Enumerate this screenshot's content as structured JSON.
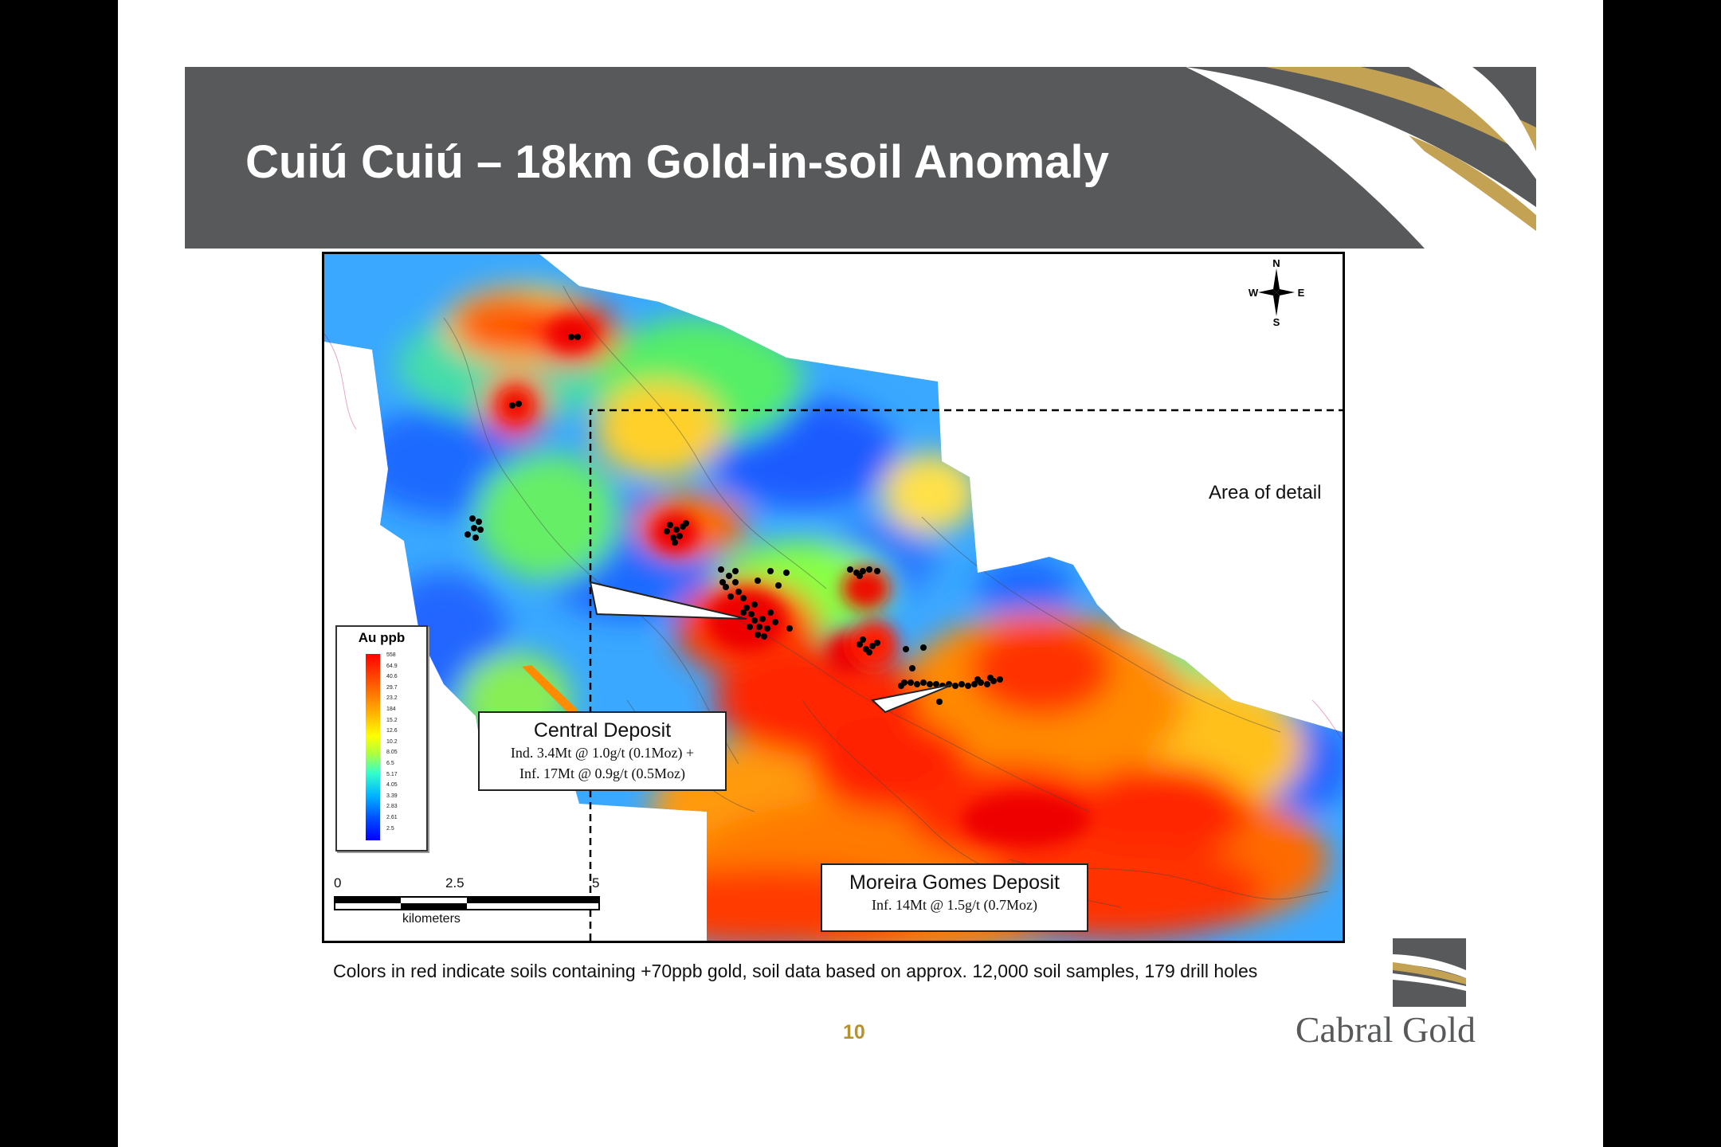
{
  "slide": {
    "title": "Cuiú Cuiú – 18km Gold-in-soil Anomaly",
    "page_number": "10",
    "footnote": "Colors in red indicate soils containing +70ppb gold, soil data based on approx. 12,000 soil samples, 179 drill holes",
    "brand_name": "Cabral Gold",
    "colors": {
      "header": "#58595b",
      "gold_accent": "#b8912f",
      "background": "#ffffff"
    }
  },
  "map": {
    "area_label": "Area of detail",
    "compass": {
      "n": "N",
      "s": "S",
      "e": "E",
      "w": "W"
    },
    "legend": {
      "title": "Au ppb",
      "values": [
        "558",
        "64.9",
        "40.6",
        "29.7",
        "23.2",
        "184",
        "15.2",
        "12.6",
        "10.2",
        "8.05",
        "6.5",
        "5.17",
        "4.05",
        "3.39",
        "2.83",
        "2.61",
        "2.5"
      ]
    },
    "scale": {
      "ticks": [
        "0",
        "2.5",
        "5"
      ],
      "units": "kilometers"
    },
    "callouts": [
      {
        "title": "Central Deposit",
        "lines": [
          "Ind. 3.4Mt @ 1.0g/t (0.1Moz) +",
          "Inf. 17Mt @ 0.9g/t (0.5Moz)"
        ]
      },
      {
        "title": "Moreira Gomes Deposit",
        "lines": [
          "Inf. 14Mt @ 1.5g/t (0.7Moz)"
        ]
      }
    ]
  }
}
